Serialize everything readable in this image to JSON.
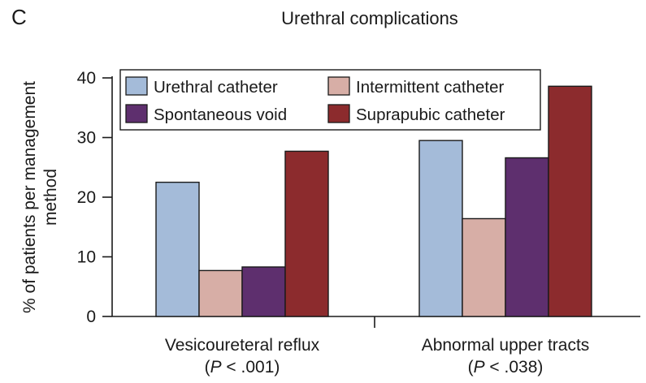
{
  "panel_letter": "C",
  "chart_data": {
    "type": "bar",
    "title": "Urethral complications",
    "xlabel": "",
    "ylabel_lines": [
      "% of patients per management",
      "method"
    ],
    "ylim": [
      0,
      40
    ],
    "yticks": [
      0,
      10,
      20,
      30,
      40
    ],
    "grid": false,
    "legend_position": "top",
    "categories": [
      {
        "lines": [
          "Vesicoureteral reflux",
          "(P < .001)"
        ],
        "p_italic": "P",
        "p_rest": " < .001)"
      },
      {
        "lines": [
          "Abnormal upper tracts",
          "(P < .038)"
        ],
        "p_italic": "P",
        "p_rest": " < .038)"
      }
    ],
    "series": [
      {
        "name": "Urethral catheter",
        "color": "#a4bbd9",
        "values": [
          22.5,
          29.5
        ]
      },
      {
        "name": "Intermittent catheter",
        "color": "#d7aea6",
        "values": [
          7.7,
          16.4
        ]
      },
      {
        "name": "Spontaneous void",
        "color": "#5e2f6e",
        "values": [
          8.3,
          26.6
        ]
      },
      {
        "name": "Suprapubic catheter",
        "color": "#8c2b2d",
        "values": [
          27.7,
          38.6
        ]
      }
    ]
  }
}
